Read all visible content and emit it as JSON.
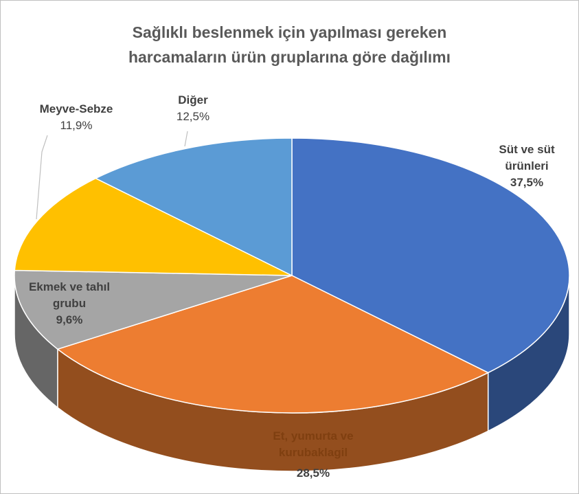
{
  "chart_data": {
    "type": "pie",
    "title": "Sağlıklı beslenmek için yapılması gereken harcamaların ürün gruplarına göre dağılımı",
    "categories": [
      "Süt ve süt ürünleri",
      "Et, yumurta ve kurubaklagil",
      "Ekmek ve tahıl grubu",
      "Meyve-Sebze",
      "Diğer"
    ],
    "values": [
      37.5,
      28.5,
      9.6,
      11.9,
      12.5
    ],
    "value_labels": [
      "37,5%",
      "28,5%",
      "9,6%",
      "11,9%",
      "12,5%"
    ],
    "colors": [
      "#4472c4",
      "#ed7d31",
      "#a5a5a5",
      "#ffc000",
      "#5b9bd5"
    ]
  }
}
